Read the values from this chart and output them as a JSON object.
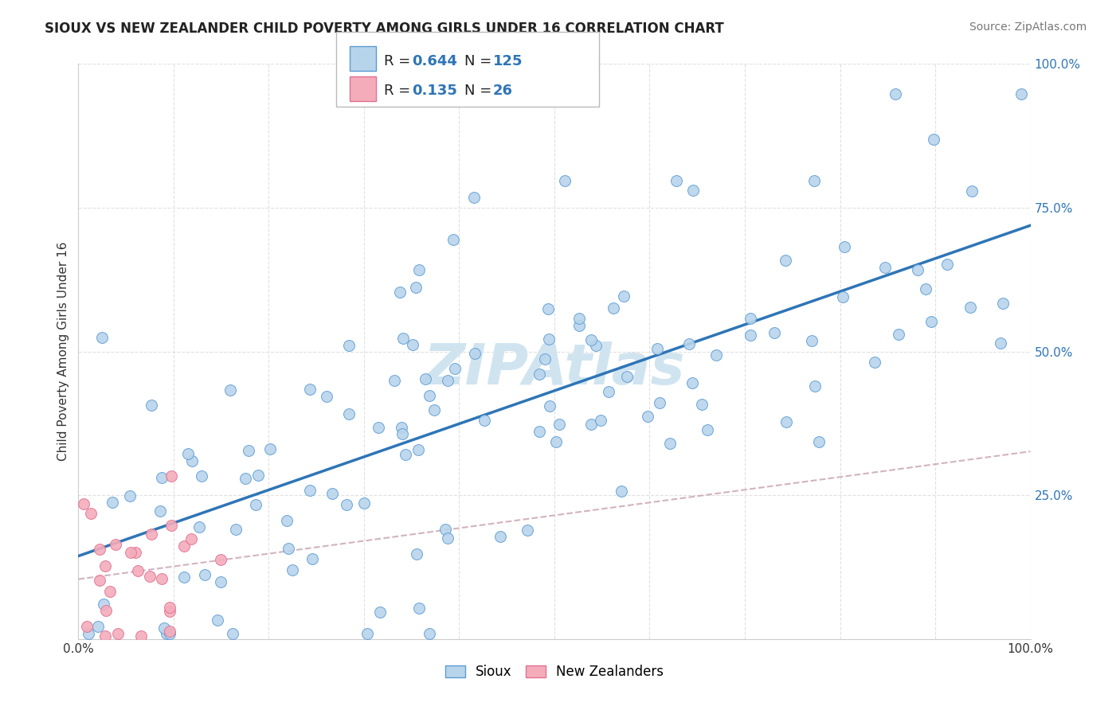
{
  "title": "SIOUX VS NEW ZEALANDER CHILD POVERTY AMONG GIRLS UNDER 16 CORRELATION CHART",
  "source": "Source: ZipAtlas.com",
  "ylabel": "Child Poverty Among Girls Under 16",
  "xlim": [
    0,
    1.0
  ],
  "ylim": [
    0,
    1.0
  ],
  "sioux_R": 0.644,
  "sioux_N": 125,
  "nz_R": 0.135,
  "nz_N": 26,
  "sioux_color": "#b8d4eb",
  "sioux_edge_color": "#5b9bd5",
  "sioux_line_color": "#2e75b6",
  "nz_color": "#f4acbb",
  "nz_edge_color": "#e07090",
  "nz_line_color": "#c0607a",
  "watermark_color": "#d0e4f0",
  "background_color": "#ffffff",
  "grid_color": "#e0e0e0",
  "legend_text_color": "#2e75b6",
  "ytick_color": "#2e75b6",
  "xtick_color": "#333333"
}
